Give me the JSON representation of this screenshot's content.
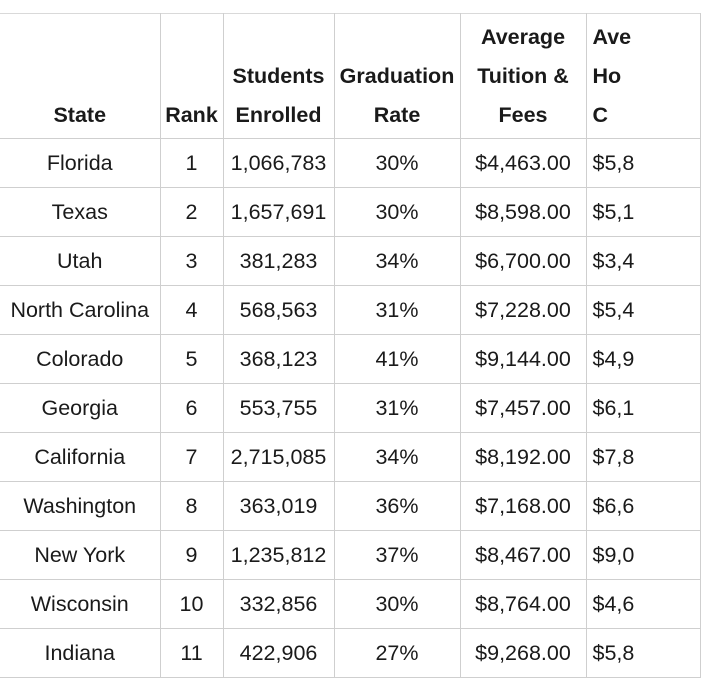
{
  "headers": {
    "state": [
      "State"
    ],
    "rank": [
      "Rank"
    ],
    "students": [
      "Students",
      "Enrolled"
    ],
    "graduation": [
      "Graduation",
      "Rate"
    ],
    "tuition": [
      "Average",
      "Tuition &",
      "Fees"
    ],
    "housing": [
      "Ave",
      "Ho",
      "C"
    ]
  },
  "rows": [
    {
      "state": "Florida",
      "rank": "1",
      "students": "1,066,783",
      "graduation": "30%",
      "tuition": "$4,463.00",
      "housing": "$5,8"
    },
    {
      "state": "Texas",
      "rank": "2",
      "students": "1,657,691",
      "graduation": "30%",
      "tuition": "$8,598.00",
      "housing": "$5,1"
    },
    {
      "state": "Utah",
      "rank": "3",
      "students": "381,283",
      "graduation": "34%",
      "tuition": "$6,700.00",
      "housing": "$3,4"
    },
    {
      "state": "North Carolina",
      "rank": "4",
      "students": "568,563",
      "graduation": "31%",
      "tuition": "$7,228.00",
      "housing": "$5,4"
    },
    {
      "state": "Colorado",
      "rank": "5",
      "students": "368,123",
      "graduation": "41%",
      "tuition": "$9,144.00",
      "housing": "$4,9"
    },
    {
      "state": "Georgia",
      "rank": "6",
      "students": "553,755",
      "graduation": "31%",
      "tuition": "$7,457.00",
      "housing": "$6,1"
    },
    {
      "state": "California",
      "rank": "7",
      "students": "2,715,085",
      "graduation": "34%",
      "tuition": "$8,192.00",
      "housing": "$7,8"
    },
    {
      "state": "Washington",
      "rank": "8",
      "students": "363,019",
      "graduation": "36%",
      "tuition": "$7,168.00",
      "housing": "$6,6"
    },
    {
      "state": "New York",
      "rank": "9",
      "students": "1,235,812",
      "graduation": "37%",
      "tuition": "$8,467.00",
      "housing": "$9,0"
    },
    {
      "state": "Wisconsin",
      "rank": "10",
      "students": "332,856",
      "graduation": "30%",
      "tuition": "$8,764.00",
      "housing": "$4,6"
    },
    {
      "state": "Indiana",
      "rank": "11",
      "students": "422,906",
      "graduation": "27%",
      "tuition": "$9,268.00",
      "housing": "$5,8"
    }
  ]
}
